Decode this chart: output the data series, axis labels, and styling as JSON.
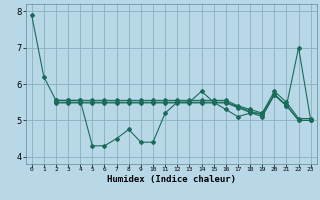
{
  "background_color": "#b8d8e8",
  "grid_color": "#8ab0c0",
  "line_color": "#1a6b5a",
  "xlim": [
    -0.5,
    23.5
  ],
  "ylim": [
    3.8,
    8.2
  ],
  "yticks": [
    4,
    5,
    6,
    7,
    8
  ],
  "xtick_labels": [
    "0",
    "1",
    "2",
    "3",
    "4",
    "5",
    "6",
    "7",
    "8",
    "9",
    "10",
    "11",
    "12",
    "13",
    "14",
    "15",
    "16",
    "17",
    "18",
    "19",
    "20",
    "21",
    "22",
    "23"
  ],
  "xlabel": "Humidex (Indice chaleur)",
  "line0_x": [
    0,
    1,
    2,
    3,
    4,
    5,
    6,
    7,
    8,
    9,
    10,
    11,
    12,
    13,
    14,
    15,
    16,
    17,
    18,
    19,
    20,
    21,
    22,
    23
  ],
  "line0_y": [
    7.9,
    6.2,
    5.55,
    5.55,
    5.55,
    4.3,
    4.3,
    4.5,
    4.75,
    4.4,
    4.4,
    5.2,
    5.5,
    5.5,
    5.8,
    5.5,
    5.3,
    5.1,
    5.2,
    5.2,
    5.7,
    5.4,
    7.0,
    5.0
  ],
  "line1_x": [
    2,
    3,
    4,
    5,
    6,
    7,
    8,
    9,
    10,
    11,
    12,
    13,
    14,
    15,
    16,
    17,
    18,
    19,
    20,
    21,
    22,
    23
  ],
  "line1_y": [
    5.55,
    5.55,
    5.55,
    5.55,
    5.55,
    5.55,
    5.55,
    5.55,
    5.55,
    5.55,
    5.55,
    5.55,
    5.55,
    5.55,
    5.55,
    5.4,
    5.3,
    5.2,
    5.8,
    5.5,
    5.05,
    5.05
  ],
  "line2_x": [
    2,
    3,
    4,
    5,
    6,
    7,
    8,
    9,
    10,
    11,
    12,
    13,
    14,
    15,
    16,
    17,
    18,
    19,
    20,
    21,
    22,
    23
  ],
  "line2_y": [
    5.5,
    5.5,
    5.5,
    5.5,
    5.5,
    5.5,
    5.5,
    5.5,
    5.5,
    5.5,
    5.5,
    5.5,
    5.5,
    5.5,
    5.5,
    5.38,
    5.25,
    5.15,
    5.72,
    5.42,
    5.0,
    5.0
  ],
  "line3_x": [
    2,
    3,
    4,
    5,
    6,
    7,
    8,
    9,
    10,
    11,
    12,
    13,
    14,
    15,
    16,
    17,
    18,
    19,
    20,
    21,
    22,
    23
  ],
  "line3_y": [
    5.48,
    5.48,
    5.48,
    5.48,
    5.48,
    5.48,
    5.48,
    5.48,
    5.48,
    5.48,
    5.48,
    5.48,
    5.48,
    5.48,
    5.48,
    5.35,
    5.22,
    5.1,
    5.7,
    5.4,
    5.0,
    5.0
  ]
}
